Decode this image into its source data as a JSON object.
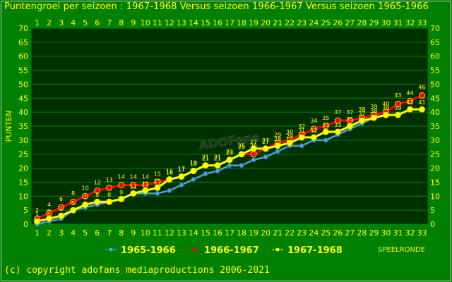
{
  "title": "Puntengroei per seizoen : 1967-1968 Versus seizoen 1966-1967 Versus seizoen 1965-1966",
  "copyright": "(c) copyright adofans mediaproductions 2006-2021",
  "watermark": "ADOFans",
  "colors": {
    "background": "#008000",
    "plot": "#003000",
    "grid": "#008000",
    "text": "#ffff00",
    "s1965": "#4fa3d9",
    "s1966": "#ff0000",
    "s1967": "#ffff00"
  },
  "chart_data": {
    "type": "line",
    "title": "Puntengroei per seizoen : 1967-1968 Versus seizoen 1966-1967 Versus seizoen 1965-1966",
    "ylabel": "PUNTEN",
    "xlabel": "SPEELRONDE",
    "xlim": [
      1,
      33
    ],
    "ylim": [
      0,
      70
    ],
    "yticks": [
      0,
      5,
      10,
      15,
      20,
      25,
      30,
      35,
      40,
      45,
      50,
      55,
      60,
      65,
      70
    ],
    "x": [
      1,
      2,
      3,
      4,
      5,
      6,
      7,
      8,
      9,
      10,
      11,
      12,
      13,
      14,
      15,
      16,
      17,
      18,
      19,
      20,
      21,
      22,
      23,
      24,
      25,
      26,
      27,
      28,
      29,
      30,
      31,
      32,
      33
    ],
    "grid": true,
    "legend_position": "bottom",
    "series": [
      {
        "name": "1965-1966",
        "color": "#4fa3d9",
        "values": [
          0,
          1,
          2,
          5,
          6,
          7,
          8,
          9,
          11,
          11,
          11,
          12,
          14,
          16,
          18,
          19,
          21,
          21,
          23,
          24,
          26,
          28,
          28,
          30,
          30,
          32,
          34,
          36,
          38,
          39,
          null,
          null,
          null
        ],
        "labels": false
      },
      {
        "name": "1966-1967",
        "color": "#ff0000",
        "values": [
          2,
          4,
          6,
          8,
          10,
          12,
          13,
          14,
          14,
          14,
          15,
          16,
          17,
          19,
          21,
          21,
          23,
          25,
          25,
          27,
          29,
          30,
          32,
          34,
          35,
          37,
          37,
          38,
          39,
          40,
          43,
          44,
          46
        ],
        "labels": true
      },
      {
        "name": "1967-1968",
        "color": "#ffff00",
        "values": [
          1,
          2,
          3,
          5,
          7,
          8,
          8,
          9,
          11,
          12,
          13,
          16,
          17,
          19,
          21,
          21,
          23,
          25,
          27,
          27,
          28,
          29,
          31,
          31,
          33,
          33,
          35,
          37,
          38,
          39,
          39,
          41,
          41
        ],
        "labels": true
      }
    ]
  }
}
